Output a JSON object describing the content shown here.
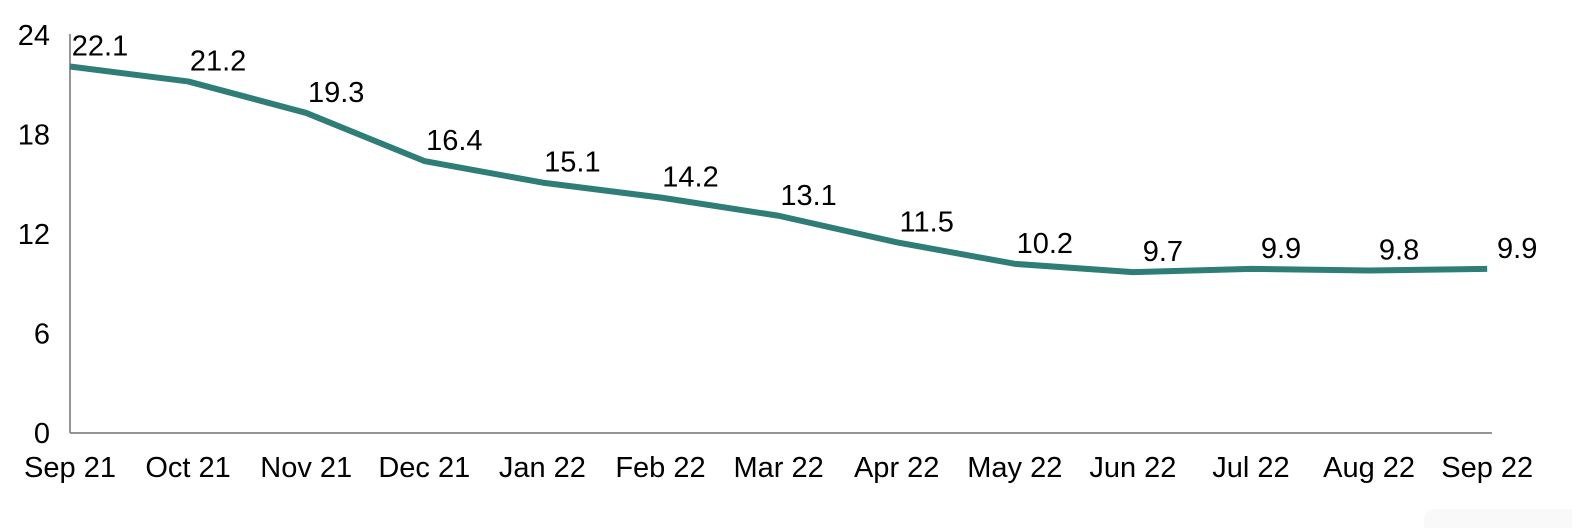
{
  "chart_data": {
    "type": "line",
    "title": "",
    "xlabel": "",
    "ylabel": "",
    "categories": [
      "Sep 21",
      "Oct 21",
      "Nov 21",
      "Dec 21",
      "Jan 22",
      "Feb 22",
      "Mar 22",
      "Apr 22",
      "May 22",
      "Jun 22",
      "Jul 22",
      "Aug 22",
      "Sep 22"
    ],
    "values": [
      22.1,
      21.2,
      19.3,
      16.4,
      15.1,
      14.2,
      13.1,
      11.5,
      10.2,
      9.7,
      9.9,
      9.8,
      9.9
    ],
    "data_labels": [
      "22.1",
      "21.2",
      "19.3",
      "16.4",
      "15.1",
      "14.2",
      "13.1",
      "11.5",
      "10.2",
      "9.7",
      "9.9",
      "9.8",
      "9.9"
    ],
    "y_ticks": [
      "0",
      "6",
      "12",
      "18",
      "24"
    ],
    "y_tick_values": [
      0,
      6,
      12,
      18,
      24
    ],
    "ylim": [
      0,
      24
    ],
    "grid": false,
    "legend_position": "none",
    "colors": {
      "line": "#2E7D76",
      "axis": "#848484",
      "text": "#000000",
      "background": "#ffffff"
    }
  }
}
